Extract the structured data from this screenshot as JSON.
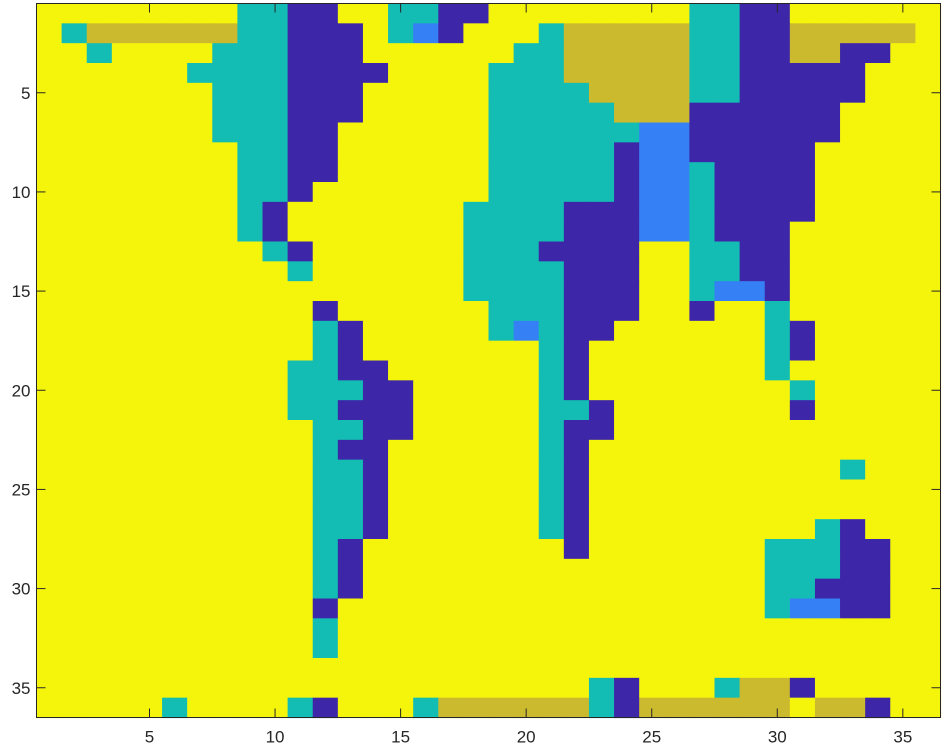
{
  "chart_data": {
    "type": "heatmap",
    "title": "",
    "xlabel": "",
    "ylabel": "",
    "n_rows": 36,
    "n_cols": 36,
    "x_range": [
      0.5,
      36.5
    ],
    "y_range": [
      0.5,
      36.5
    ],
    "y_direction": "reversed",
    "x_ticks": [
      5,
      10,
      15,
      20,
      25,
      30,
      35
    ],
    "y_ticks": [
      5,
      10,
      15,
      20,
      25,
      30,
      35
    ],
    "x_tick_labels": [
      "5",
      "10",
      "15",
      "20",
      "25",
      "30",
      "35"
    ],
    "y_tick_labels": [
      "5",
      "10",
      "15",
      "20",
      "25",
      "30",
      "35"
    ],
    "colormap": [
      "#3e26a8",
      "#3680f5",
      "#14bdb3",
      "#cbba2e",
      "#f5f50c"
    ],
    "values": [
      [
        4,
        4,
        4,
        4,
        4,
        4,
        4,
        4,
        2,
        2,
        0,
        0,
        4,
        4,
        2,
        2,
        0,
        0,
        4,
        4,
        4,
        4,
        4,
        4,
        4,
        4,
        2,
        2,
        0,
        0,
        4,
        4,
        4,
        4,
        4,
        4
      ],
      [
        4,
        2,
        3,
        3,
        3,
        3,
        3,
        3,
        2,
        2,
        0,
        0,
        0,
        4,
        2,
        1,
        0,
        4,
        4,
        4,
        2,
        3,
        3,
        3,
        3,
        3,
        2,
        2,
        0,
        0,
        3,
        3,
        3,
        3,
        3,
        4
      ],
      [
        4,
        4,
        2,
        4,
        4,
        4,
        4,
        2,
        2,
        2,
        0,
        0,
        0,
        4,
        4,
        4,
        4,
        4,
        4,
        2,
        2,
        3,
        3,
        3,
        3,
        3,
        2,
        2,
        0,
        0,
        3,
        3,
        0,
        0,
        4,
        4
      ],
      [
        4,
        4,
        4,
        4,
        4,
        4,
        2,
        2,
        2,
        2,
        0,
        0,
        0,
        0,
        4,
        4,
        4,
        4,
        2,
        2,
        2,
        3,
        3,
        3,
        3,
        3,
        2,
        2,
        0,
        0,
        0,
        0,
        0,
        4,
        4,
        4
      ],
      [
        4,
        4,
        4,
        4,
        4,
        4,
        4,
        2,
        2,
        2,
        0,
        0,
        0,
        4,
        4,
        4,
        4,
        4,
        2,
        2,
        2,
        2,
        3,
        3,
        3,
        3,
        2,
        2,
        0,
        0,
        0,
        0,
        0,
        4,
        4,
        4
      ],
      [
        4,
        4,
        4,
        4,
        4,
        4,
        4,
        2,
        2,
        2,
        0,
        0,
        0,
        4,
        4,
        4,
        4,
        4,
        2,
        2,
        2,
        2,
        2,
        3,
        3,
        3,
        0,
        0,
        0,
        0,
        0,
        0,
        4,
        4,
        4,
        4
      ],
      [
        4,
        4,
        4,
        4,
        4,
        4,
        4,
        2,
        2,
        2,
        0,
        0,
        4,
        4,
        4,
        4,
        4,
        4,
        2,
        2,
        2,
        2,
        2,
        2,
        1,
        1,
        0,
        0,
        0,
        0,
        0,
        0,
        4,
        4,
        4,
        4
      ],
      [
        4,
        4,
        4,
        4,
        4,
        4,
        4,
        4,
        2,
        2,
        0,
        0,
        4,
        4,
        4,
        4,
        4,
        4,
        2,
        2,
        2,
        2,
        2,
        0,
        1,
        1,
        0,
        0,
        0,
        0,
        0,
        4,
        4,
        4,
        4,
        4
      ],
      [
        4,
        4,
        4,
        4,
        4,
        4,
        4,
        4,
        2,
        2,
        0,
        0,
        4,
        4,
        4,
        4,
        4,
        4,
        2,
        2,
        2,
        2,
        2,
        0,
        1,
        1,
        2,
        0,
        0,
        0,
        0,
        4,
        4,
        4,
        4,
        4
      ],
      [
        4,
        4,
        4,
        4,
        4,
        4,
        4,
        4,
        2,
        2,
        0,
        4,
        4,
        4,
        4,
        4,
        4,
        4,
        2,
        2,
        2,
        2,
        2,
        0,
        1,
        1,
        2,
        0,
        0,
        0,
        0,
        4,
        4,
        4,
        4,
        4
      ],
      [
        4,
        4,
        4,
        4,
        4,
        4,
        4,
        4,
        2,
        0,
        4,
        4,
        4,
        4,
        4,
        4,
        4,
        2,
        2,
        2,
        2,
        0,
        0,
        0,
        1,
        1,
        2,
        0,
        0,
        0,
        0,
        4,
        4,
        4,
        4,
        4
      ],
      [
        4,
        4,
        4,
        4,
        4,
        4,
        4,
        4,
        2,
        0,
        4,
        4,
        4,
        4,
        4,
        4,
        4,
        2,
        2,
        2,
        2,
        0,
        0,
        0,
        1,
        1,
        2,
        0,
        0,
        0,
        4,
        4,
        4,
        4,
        4,
        4
      ],
      [
        4,
        4,
        4,
        4,
        4,
        4,
        4,
        4,
        4,
        2,
        0,
        4,
        4,
        4,
        4,
        4,
        4,
        2,
        2,
        2,
        0,
        0,
        0,
        0,
        4,
        4,
        2,
        2,
        0,
        0,
        4,
        4,
        4,
        4,
        4,
        4
      ],
      [
        4,
        4,
        4,
        4,
        4,
        4,
        4,
        4,
        4,
        4,
        2,
        4,
        4,
        4,
        4,
        4,
        4,
        2,
        2,
        2,
        2,
        0,
        0,
        0,
        4,
        4,
        2,
        2,
        0,
        0,
        4,
        4,
        4,
        4,
        4,
        4
      ],
      [
        4,
        4,
        4,
        4,
        4,
        4,
        4,
        4,
        4,
        4,
        4,
        4,
        4,
        4,
        4,
        4,
        4,
        2,
        2,
        2,
        2,
        0,
        0,
        0,
        4,
        4,
        2,
        1,
        1,
        0,
        4,
        4,
        4,
        4,
        4,
        4
      ],
      [
        4,
        4,
        4,
        4,
        4,
        4,
        4,
        4,
        4,
        4,
        4,
        0,
        4,
        4,
        4,
        4,
        4,
        4,
        2,
        2,
        2,
        0,
        0,
        0,
        4,
        4,
        0,
        4,
        4,
        2,
        4,
        4,
        4,
        4,
        4,
        4
      ],
      [
        4,
        4,
        4,
        4,
        4,
        4,
        4,
        4,
        4,
        4,
        4,
        2,
        0,
        4,
        4,
        4,
        4,
        4,
        2,
        1,
        2,
        0,
        0,
        4,
        4,
        4,
        4,
        4,
        4,
        2,
        0,
        4,
        4,
        4,
        4,
        4
      ],
      [
        4,
        4,
        4,
        4,
        4,
        4,
        4,
        4,
        4,
        4,
        4,
        2,
        0,
        4,
        4,
        4,
        4,
        4,
        4,
        4,
        2,
        0,
        4,
        4,
        4,
        4,
        4,
        4,
        4,
        2,
        0,
        4,
        4,
        4,
        4,
        4
      ],
      [
        4,
        4,
        4,
        4,
        4,
        4,
        4,
        4,
        4,
        4,
        2,
        2,
        0,
        0,
        4,
        4,
        4,
        4,
        4,
        4,
        2,
        0,
        4,
        4,
        4,
        4,
        4,
        4,
        4,
        2,
        4,
        4,
        4,
        4,
        4,
        4
      ],
      [
        4,
        4,
        4,
        4,
        4,
        4,
        4,
        4,
        4,
        4,
        2,
        2,
        2,
        0,
        0,
        4,
        4,
        4,
        4,
        4,
        2,
        0,
        4,
        4,
        4,
        4,
        4,
        4,
        4,
        4,
        2,
        4,
        4,
        4,
        4,
        4
      ],
      [
        4,
        4,
        4,
        4,
        4,
        4,
        4,
        4,
        4,
        4,
        2,
        2,
        0,
        0,
        0,
        4,
        4,
        4,
        4,
        4,
        2,
        2,
        0,
        4,
        4,
        4,
        4,
        4,
        4,
        4,
        0,
        4,
        4,
        4,
        4,
        4
      ],
      [
        4,
        4,
        4,
        4,
        4,
        4,
        4,
        4,
        4,
        4,
        4,
        2,
        2,
        0,
        0,
        4,
        4,
        4,
        4,
        4,
        2,
        0,
        0,
        4,
        4,
        4,
        4,
        4,
        4,
        4,
        4,
        4,
        4,
        4,
        4,
        4
      ],
      [
        4,
        4,
        4,
        4,
        4,
        4,
        4,
        4,
        4,
        4,
        4,
        2,
        0,
        0,
        4,
        4,
        4,
        4,
        4,
        4,
        2,
        0,
        4,
        4,
        4,
        4,
        4,
        4,
        4,
        4,
        4,
        4,
        4,
        4,
        4,
        4
      ],
      [
        4,
        4,
        4,
        4,
        4,
        4,
        4,
        4,
        4,
        4,
        4,
        2,
        2,
        0,
        4,
        4,
        4,
        4,
        4,
        4,
        2,
        0,
        4,
        4,
        4,
        4,
        4,
        4,
        4,
        4,
        4,
        4,
        2,
        4,
        4,
        4
      ],
      [
        4,
        4,
        4,
        4,
        4,
        4,
        4,
        4,
        4,
        4,
        4,
        2,
        2,
        0,
        4,
        4,
        4,
        4,
        4,
        4,
        2,
        0,
        4,
        4,
        4,
        4,
        4,
        4,
        4,
        4,
        4,
        4,
        4,
        4,
        4,
        4
      ],
      [
        4,
        4,
        4,
        4,
        4,
        4,
        4,
        4,
        4,
        4,
        4,
        2,
        2,
        0,
        4,
        4,
        4,
        4,
        4,
        4,
        2,
        0,
        4,
        4,
        4,
        4,
        4,
        4,
        4,
        4,
        4,
        4,
        4,
        4,
        4,
        4
      ],
      [
        4,
        4,
        4,
        4,
        4,
        4,
        4,
        4,
        4,
        4,
        4,
        2,
        2,
        0,
        4,
        4,
        4,
        4,
        4,
        4,
        2,
        0,
        4,
        4,
        4,
        4,
        4,
        4,
        4,
        4,
        4,
        2,
        0,
        4,
        4,
        4
      ],
      [
        4,
        4,
        4,
        4,
        4,
        4,
        4,
        4,
        4,
        4,
        4,
        2,
        0,
        4,
        4,
        4,
        4,
        4,
        4,
        4,
        4,
        0,
        4,
        4,
        4,
        4,
        4,
        4,
        4,
        2,
        2,
        2,
        0,
        0,
        4,
        4
      ],
      [
        4,
        4,
        4,
        4,
        4,
        4,
        4,
        4,
        4,
        4,
        4,
        2,
        0,
        4,
        4,
        4,
        4,
        4,
        4,
        4,
        4,
        4,
        4,
        4,
        4,
        4,
        4,
        4,
        4,
        2,
        2,
        2,
        0,
        0,
        4,
        4
      ],
      [
        4,
        4,
        4,
        4,
        4,
        4,
        4,
        4,
        4,
        4,
        4,
        2,
        0,
        4,
        4,
        4,
        4,
        4,
        4,
        4,
        4,
        4,
        4,
        4,
        4,
        4,
        4,
        4,
        4,
        2,
        2,
        0,
        0,
        0,
        4,
        4
      ],
      [
        4,
        4,
        4,
        4,
        4,
        4,
        4,
        4,
        4,
        4,
        4,
        0,
        4,
        4,
        4,
        4,
        4,
        4,
        4,
        4,
        4,
        4,
        4,
        4,
        4,
        4,
        4,
        4,
        4,
        2,
        1,
        1,
        0,
        0,
        4,
        4
      ],
      [
        4,
        4,
        4,
        4,
        4,
        4,
        4,
        4,
        4,
        4,
        4,
        2,
        4,
        4,
        4,
        4,
        4,
        4,
        4,
        4,
        4,
        4,
        4,
        4,
        4,
        4,
        4,
        4,
        4,
        4,
        4,
        4,
        4,
        4,
        4,
        4
      ],
      [
        4,
        4,
        4,
        4,
        4,
        4,
        4,
        4,
        4,
        4,
        4,
        2,
        4,
        4,
        4,
        4,
        4,
        4,
        4,
        4,
        4,
        4,
        4,
        4,
        4,
        4,
        4,
        4,
        4,
        4,
        4,
        4,
        4,
        4,
        4,
        4
      ],
      [
        4,
        4,
        4,
        4,
        4,
        4,
        4,
        4,
        4,
        4,
        4,
        4,
        4,
        4,
        4,
        4,
        4,
        4,
        4,
        4,
        4,
        4,
        4,
        4,
        4,
        4,
        4,
        4,
        4,
        4,
        4,
        4,
        4,
        4,
        4,
        4
      ],
      [
        4,
        4,
        4,
        4,
        4,
        4,
        4,
        4,
        4,
        4,
        4,
        4,
        4,
        4,
        4,
        4,
        4,
        4,
        4,
        4,
        4,
        4,
        2,
        0,
        4,
        4,
        4,
        2,
        3,
        3,
        0,
        4,
        4,
        4,
        4,
        4
      ],
      [
        4,
        4,
        4,
        4,
        4,
        2,
        4,
        4,
        4,
        4,
        2,
        0,
        4,
        4,
        4,
        2,
        3,
        3,
        3,
        3,
        3,
        3,
        2,
        0,
        3,
        3,
        3,
        3,
        3,
        3,
        4,
        3,
        3,
        0,
        4,
        4
      ]
    ]
  }
}
